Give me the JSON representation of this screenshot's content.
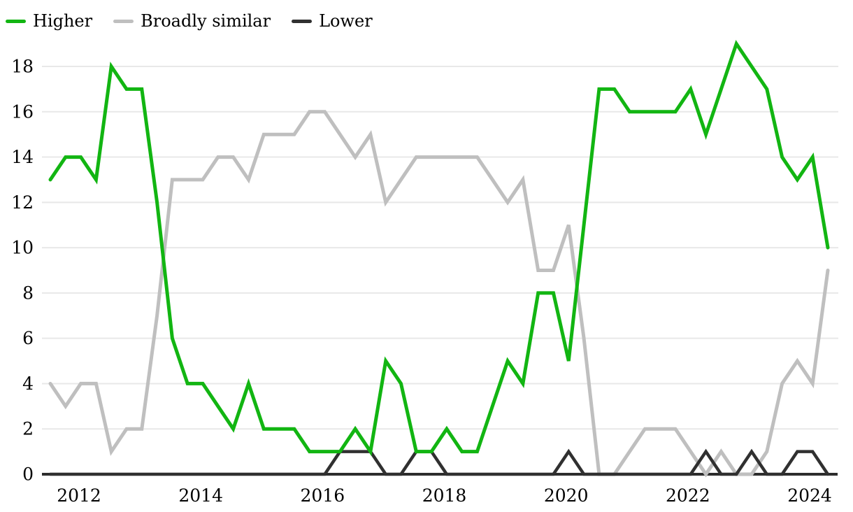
{
  "chart_data": {
    "type": "line",
    "title": "",
    "xlabel": "",
    "ylabel": "",
    "x_tick_labels": [
      "2012",
      "2014",
      "2016",
      "2018",
      "2020",
      "2022",
      "2024"
    ],
    "y_tick_labels": [
      "0",
      "2",
      "4",
      "6",
      "8",
      "10",
      "12",
      "14",
      "16",
      "18"
    ],
    "ylim": [
      0,
      19.3
    ],
    "x_range": "2011 Q3 to 2024 Q2, quarterly",
    "grid": "horizontal",
    "legend_position": "top-left",
    "background": "#ffffff",
    "gridline_color": "#e8e8e8",
    "axis_color": "#2d2d2d",
    "series": [
      {
        "name": "Higher",
        "color": "#12b512",
        "values": [
          13,
          14,
          14,
          13,
          18,
          17,
          17,
          12,
          6,
          4,
          4,
          3,
          2,
          4,
          2,
          2,
          2,
          1,
          1,
          1,
          2,
          1,
          5,
          4,
          1,
          1,
          2,
          1,
          1,
          3,
          5,
          4,
          8,
          8,
          5,
          11,
          17,
          17,
          16,
          16,
          16,
          16,
          17,
          15,
          17,
          19,
          18,
          17,
          14,
          13,
          14,
          10
        ]
      },
      {
        "name": "Broadly similar",
        "color": "#bfbfbf",
        "values": [
          4,
          3,
          4,
          4,
          1,
          2,
          2,
          7,
          13,
          13,
          13,
          14,
          14,
          13,
          15,
          15,
          15,
          16,
          16,
          15,
          14,
          15,
          12,
          13,
          14,
          14,
          14,
          14,
          14,
          13,
          12,
          13,
          9,
          9,
          11,
          6,
          0,
          0,
          1,
          2,
          2,
          2,
          1,
          0,
          1,
          0,
          0,
          1,
          4,
          5,
          4,
          9
        ]
      },
      {
        "name": "Lower",
        "color": "#303030",
        "values": [
          0,
          0,
          0,
          0,
          0,
          0,
          0,
          0,
          0,
          0,
          0,
          0,
          0,
          0,
          0,
          0,
          0,
          0,
          0,
          1,
          1,
          1,
          0,
          0,
          1,
          1,
          0,
          0,
          0,
          0,
          0,
          0,
          0,
          0,
          1,
          0,
          0,
          0,
          0,
          0,
          0,
          0,
          0,
          1,
          0,
          0,
          1,
          0,
          0,
          1,
          1,
          0
        ]
      }
    ]
  }
}
